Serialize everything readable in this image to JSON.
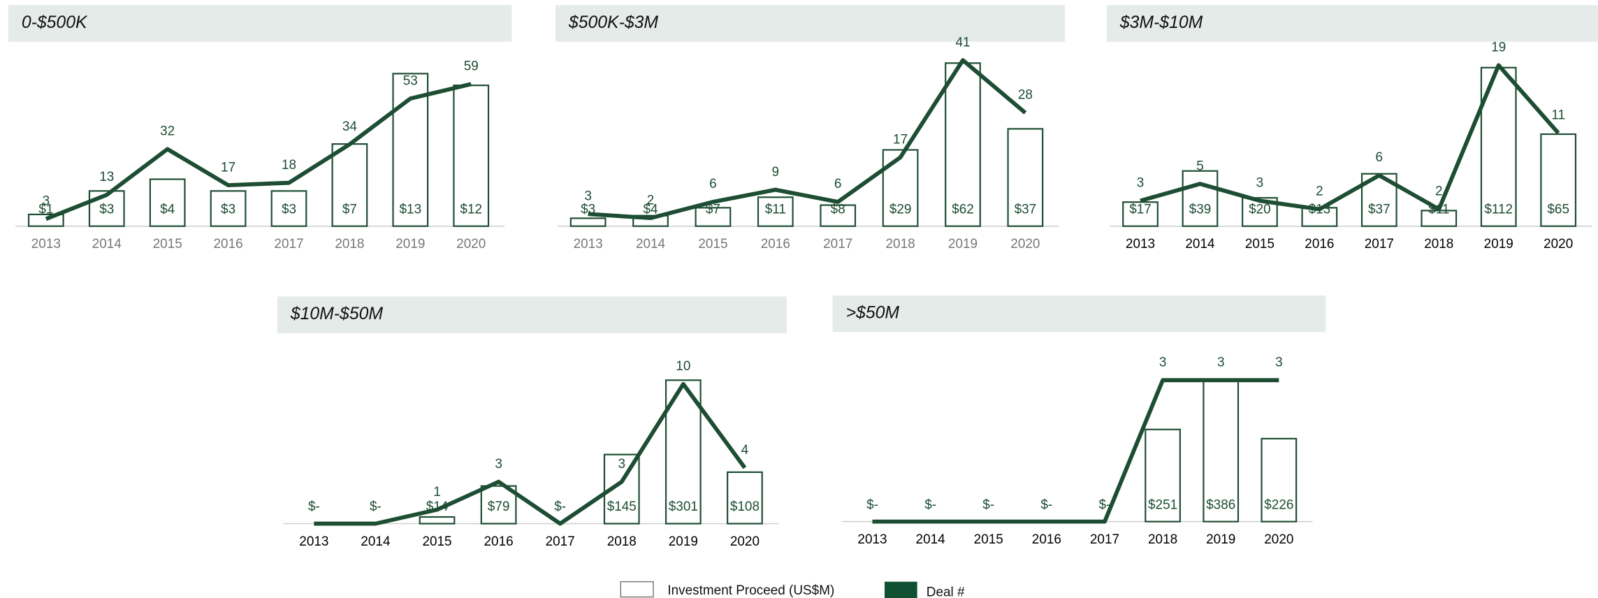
{
  "chart_data": [
    {
      "type": "bar",
      "title": "0-$500K",
      "categories": [
        "2013",
        "2014",
        "2015",
        "2016",
        "2017",
        "2018",
        "2019",
        "2020"
      ],
      "ylim": [
        0,
        15.8
      ],
      "y2lim": [
        0,
        77
      ],
      "series": [
        {
          "type": "bar",
          "color": "#1d4d33",
          "values": [
            1,
            3,
            4,
            3,
            3,
            7,
            13,
            12
          ],
          "value_labels": [
            "$1",
            "$3",
            "$4",
            "$3",
            "$3",
            "$7",
            "$13",
            "$12"
          ]
        },
        {
          "type": "line",
          "axis": "y2",
          "color": "#1d4d33",
          "values": [
            3,
            13,
            32,
            17,
            18,
            34,
            53,
            59
          ]
        }
      ]
    },
    {
      "type": "bar",
      "title": "$500K-$3M",
      "categories": [
        "2013",
        "2014",
        "2015",
        "2016",
        "2017",
        "2018",
        "2019",
        "2020"
      ],
      "ylim": [
        0,
        70.5
      ],
      "y2lim": [
        0,
        45.8
      ],
      "series": [
        {
          "type": "bar",
          "color": "#1d4d33",
          "values": [
            3,
            4,
            7,
            11,
            8,
            29,
            62,
            37
          ],
          "value_labels": [
            "$3",
            "$4",
            "$7",
            "$11",
            "$8",
            "$29",
            "$62",
            "$37"
          ]
        },
        {
          "type": "line",
          "axis": "y2",
          "color": "#1d4d33",
          "values": [
            3,
            2,
            6,
            9,
            6,
            17,
            41,
            28
          ]
        }
      ]
    },
    {
      "type": "bar",
      "title": "$3M-$10M",
      "categories": [
        "2013",
        "2014",
        "2015",
        "2016",
        "2017",
        "2018",
        "2019",
        "2020"
      ],
      "ylim": [
        0,
        131
      ],
      "y2lim": [
        0,
        21.9
      ],
      "series": [
        {
          "type": "bar",
          "color": "#1d4d33",
          "values": [
            17,
            39,
            20,
            13,
            37,
            11,
            112,
            65
          ],
          "value_labels": [
            "$17",
            "$39",
            "$20",
            "$13",
            "$37",
            "$11",
            "$112",
            "$65"
          ]
        },
        {
          "type": "line",
          "axis": "y2",
          "color": "#1d4d33",
          "values": [
            3,
            5,
            3,
            2,
            6,
            2,
            19,
            11
          ]
        }
      ]
    },
    {
      "type": "bar",
      "title": "$10M-$50M",
      "categories": [
        "2013",
        "2014",
        "2015",
        "2016",
        "2017",
        "2018",
        "2019",
        "2020"
      ],
      "ylim": [
        0,
        372
      ],
      "y2lim": [
        0,
        12.7
      ],
      "series": [
        {
          "type": "bar",
          "color": "#1d4d33",
          "values": [
            0,
            0,
            14,
            79,
            0,
            145,
            301,
            108
          ],
          "value_labels": [
            "$-",
            "$-",
            "$14",
            "$79",
            "$-",
            "$145",
            "$301",
            "$108"
          ]
        },
        {
          "type": "line",
          "axis": "y2",
          "color": "#1d4d33",
          "values": [
            0,
            0,
            1,
            3,
            0,
            3,
            10,
            4
          ],
          "value_labels": [
            null,
            null,
            1,
            3,
            null,
            3,
            10,
            4
          ]
        }
      ]
    },
    {
      "type": "bar",
      "title": ">$50M",
      "categories": [
        "2013",
        "2014",
        "2015",
        "2016",
        "2017",
        "2018",
        "2019",
        "2020"
      ],
      "ylim": [
        0,
        483
      ],
      "y2lim": [
        0,
        3.76
      ],
      "series": [
        {
          "type": "bar",
          "color": "#1d4d33",
          "values": [
            0,
            0,
            0,
            0,
            0,
            251,
            386,
            226
          ],
          "value_labels": [
            "$-",
            "$-",
            "$-",
            "$-",
            "$-",
            "$251",
            "$386",
            "$226"
          ]
        },
        {
          "type": "line",
          "axis": "y2",
          "color": "#1d4d33",
          "values": [
            0,
            0,
            0,
            0,
            0,
            3,
            3,
            3
          ],
          "value_labels": [
            null,
            null,
            null,
            null,
            null,
            3,
            3,
            3
          ]
        }
      ]
    }
  ],
  "legend": [
    {
      "name": "Investment Proceed (US$M)",
      "color": "#ffffff"
    },
    {
      "name": "Deal #",
      "color": "#0f5132"
    }
  ]
}
